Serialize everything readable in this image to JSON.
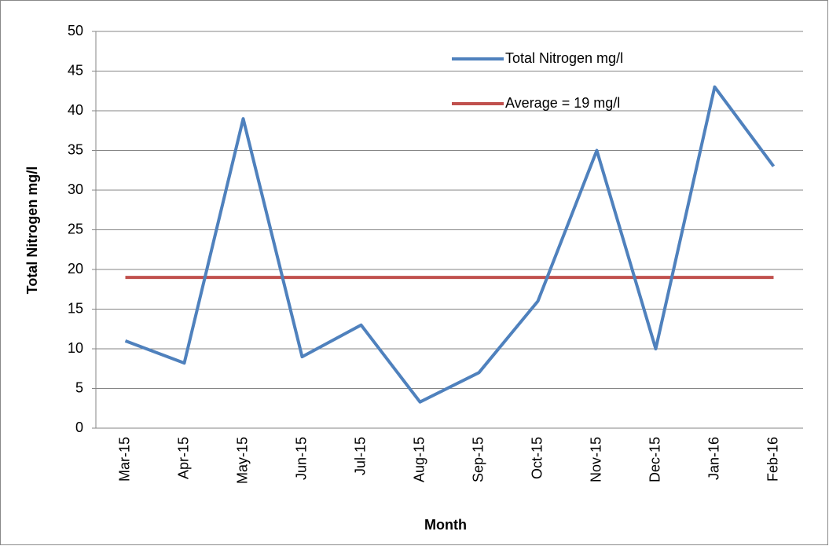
{
  "chart_data": {
    "type": "line",
    "xlabel": "Month",
    "ylabel": "Total Nitrogen mg/l",
    "categories": [
      "Mar-15",
      "Apr-15",
      "May-15",
      "Jun-15",
      "Jul-15",
      "Aug-15",
      "Sep-15",
      "Oct-15",
      "Nov-15",
      "Dec-15",
      "Jan-16",
      "Feb-16"
    ],
    "series": [
      {
        "name": "Total Nitrogen mg/l",
        "color": "#4f81bd",
        "values": [
          11,
          8.2,
          39,
          9,
          13,
          3.3,
          7,
          16,
          35,
          10,
          43,
          33
        ]
      },
      {
        "name": "Average = 19 mg/l",
        "color": "#c0504d",
        "values": [
          19,
          19,
          19,
          19,
          19,
          19,
          19,
          19,
          19,
          19,
          19,
          19
        ]
      }
    ],
    "ylim": [
      0,
      50
    ],
    "yticks": [
      0,
      5,
      10,
      15,
      20,
      25,
      30,
      35,
      40,
      45,
      50
    ],
    "grid": true,
    "legend": "top-right"
  }
}
